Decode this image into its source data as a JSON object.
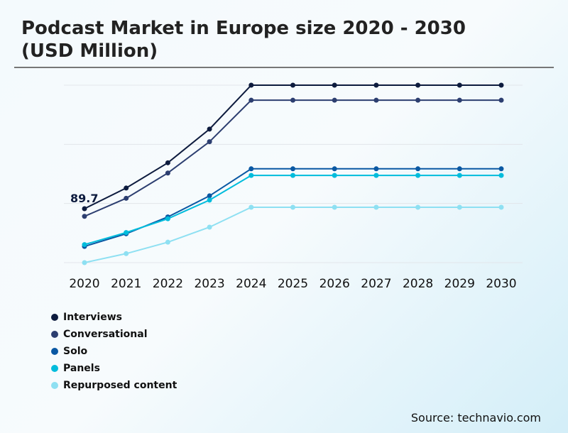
{
  "title": "Podcast Market in Europe size 2020 - 2030 (USD Million)",
  "source": "Source: technavio.com",
  "chart_data": {
    "type": "line",
    "title": "Podcast Market in Europe size 2020 - 2030 (USD Million)",
    "x": [
      "2020",
      "2021",
      "2022",
      "2023",
      "2024",
      "2025",
      "2026",
      "2027",
      "2028",
      "2029",
      "2030"
    ],
    "ylim": [
      0,
      295
    ],
    "grid": true,
    "legend_position": "bottom-left",
    "annotations": [
      {
        "series": "Interviews",
        "x": "2020",
        "label": "89.7"
      }
    ],
    "series": [
      {
        "name": "Interviews",
        "color": "#0d1b3e",
        "values": [
          89.7,
          124,
          166,
          222,
          295,
          295,
          295,
          295,
          295,
          295,
          295
        ]
      },
      {
        "name": "Conversational",
        "color": "#2c3e70",
        "values": [
          77,
          107,
          149,
          201,
          270,
          270,
          270,
          270,
          270,
          270,
          270
        ]
      },
      {
        "name": "Solo",
        "color": "#0a58a3",
        "values": [
          27,
          48,
          76,
          111,
          156,
          156,
          156,
          156,
          156,
          156,
          156
        ]
      },
      {
        "name": "Panels",
        "color": "#00bcdc",
        "values": [
          30,
          50,
          73,
          104,
          145,
          145,
          145,
          145,
          145,
          145,
          145
        ]
      },
      {
        "name": "Repurposed content",
        "color": "#8ee0f2",
        "values": [
          0,
          15,
          34,
          59,
          92,
          92,
          92,
          92,
          92,
          92,
          92
        ]
      }
    ]
  }
}
